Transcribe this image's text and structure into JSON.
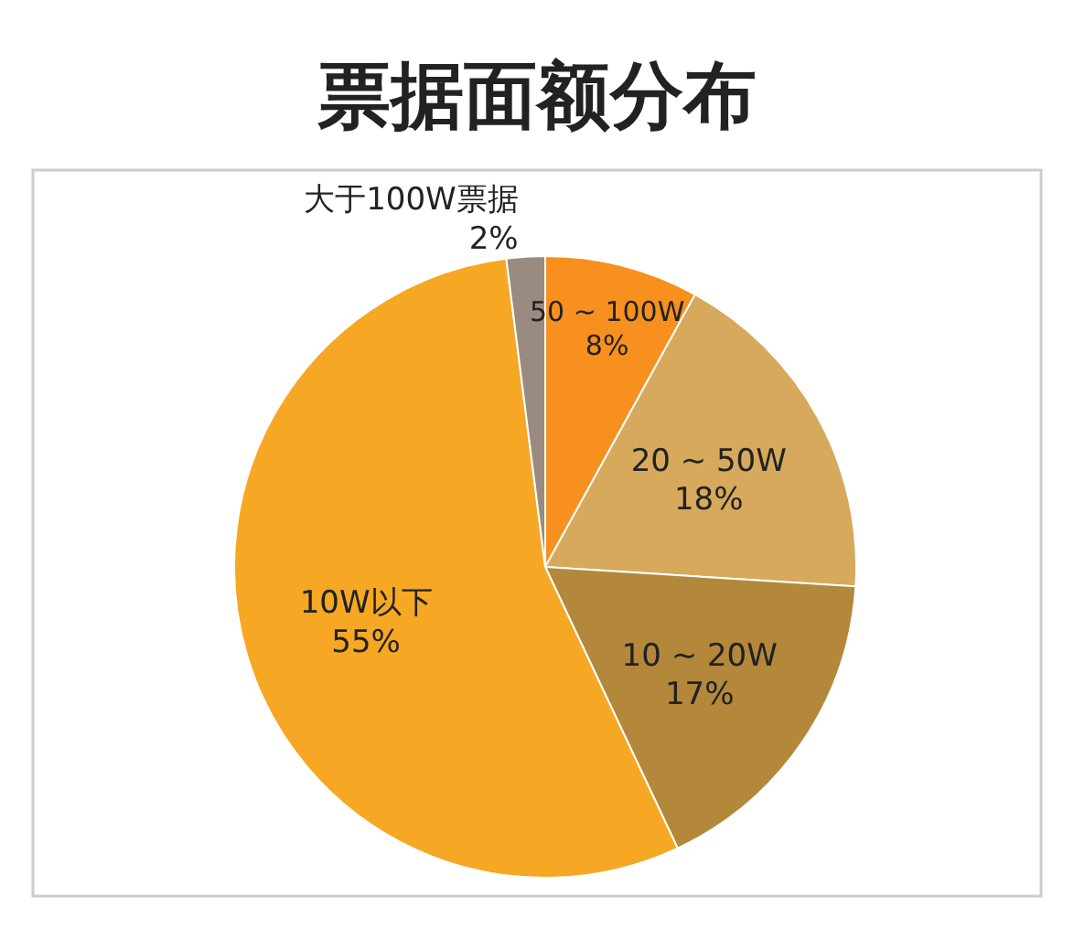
{
  "chart_data": {
    "type": "pie",
    "title": "票据面额分布",
    "categories": [
      "50 ~ 100W",
      "20 ~ 50W",
      "10 ~ 20W",
      "10W以下",
      "大于100W票据"
    ],
    "values": [
      8,
      18,
      17,
      55,
      2
    ],
    "value_labels": [
      "8%",
      "18%",
      "17%",
      "55%",
      "2%"
    ],
    "colors": [
      "#f7901e",
      "#d6a95c",
      "#b3883a",
      "#f6a824",
      "#9a8b80"
    ]
  }
}
